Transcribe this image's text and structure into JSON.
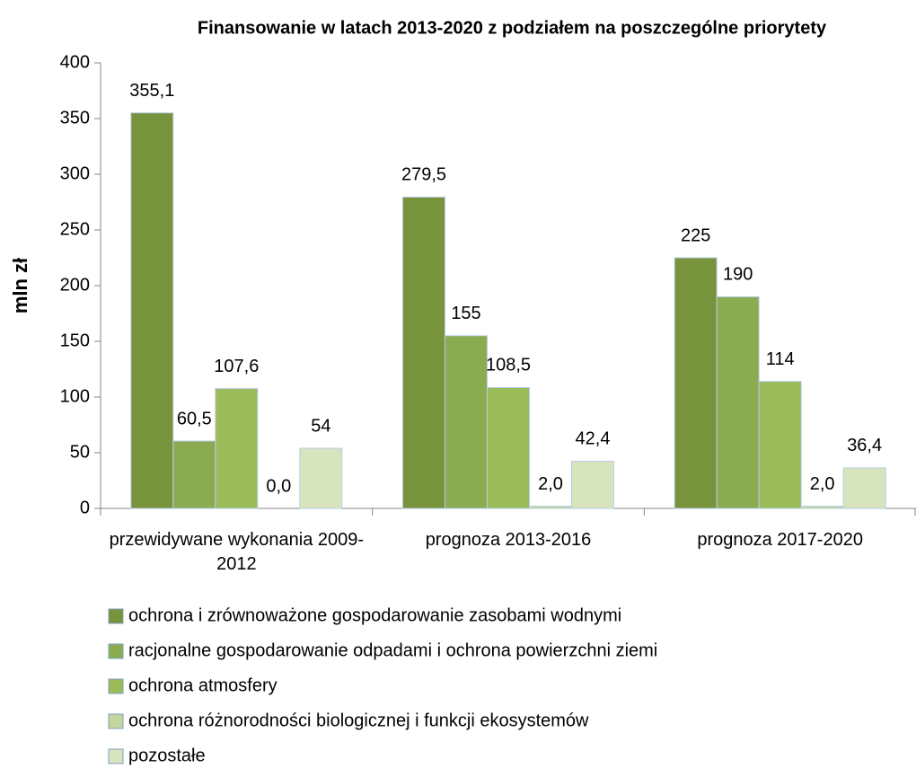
{
  "chart_data": {
    "type": "bar",
    "title": "Finansowanie w latach 2013-2020 z podziałem na poszczególne priorytety",
    "y_label": "mln zł",
    "categories": [
      "przewidywane wykonania 2009-2012",
      "prognoza 2013-2016",
      "prognoza 2017-2020"
    ],
    "series": [
      {
        "name": "ochrona i zrównoważone gospodarowanie zasobami wodnymi",
        "color": "#77933c",
        "values": [
          355.1,
          279.5,
          225
        ],
        "value_labels": [
          "355,1",
          "279,5",
          "225"
        ]
      },
      {
        "name": "racjonalne gospodarowanie odpadami i ochrona powierzchni ziemi",
        "color": "#8aab4f",
        "values": [
          60.5,
          155,
          190
        ],
        "value_labels": [
          "60,5",
          "155",
          "190"
        ]
      },
      {
        "name": "ochrona atmosfery",
        "color": "#9bbb59",
        "values": [
          107.6,
          108.5,
          114
        ],
        "value_labels": [
          "107,6",
          "108,5",
          "114"
        ]
      },
      {
        "name": "ochrona różnorodności biologicznej i funkcji ekosystemów",
        "color": "#c3d69b",
        "values": [
          0,
          2,
          2
        ],
        "value_labels": [
          "0,0",
          "2,0",
          "2,0"
        ]
      },
      {
        "name": "pozostałe",
        "color": "#d7e4bd",
        "values": [
          54,
          42.4,
          36.4
        ],
        "value_labels": [
          "54",
          "42,4",
          "36,4"
        ]
      }
    ],
    "ylim": [
      0,
      400
    ],
    "yticks": [
      0,
      50,
      100,
      150,
      200,
      250,
      300,
      350,
      400
    ],
    "grid": false,
    "legend": "bottom"
  }
}
